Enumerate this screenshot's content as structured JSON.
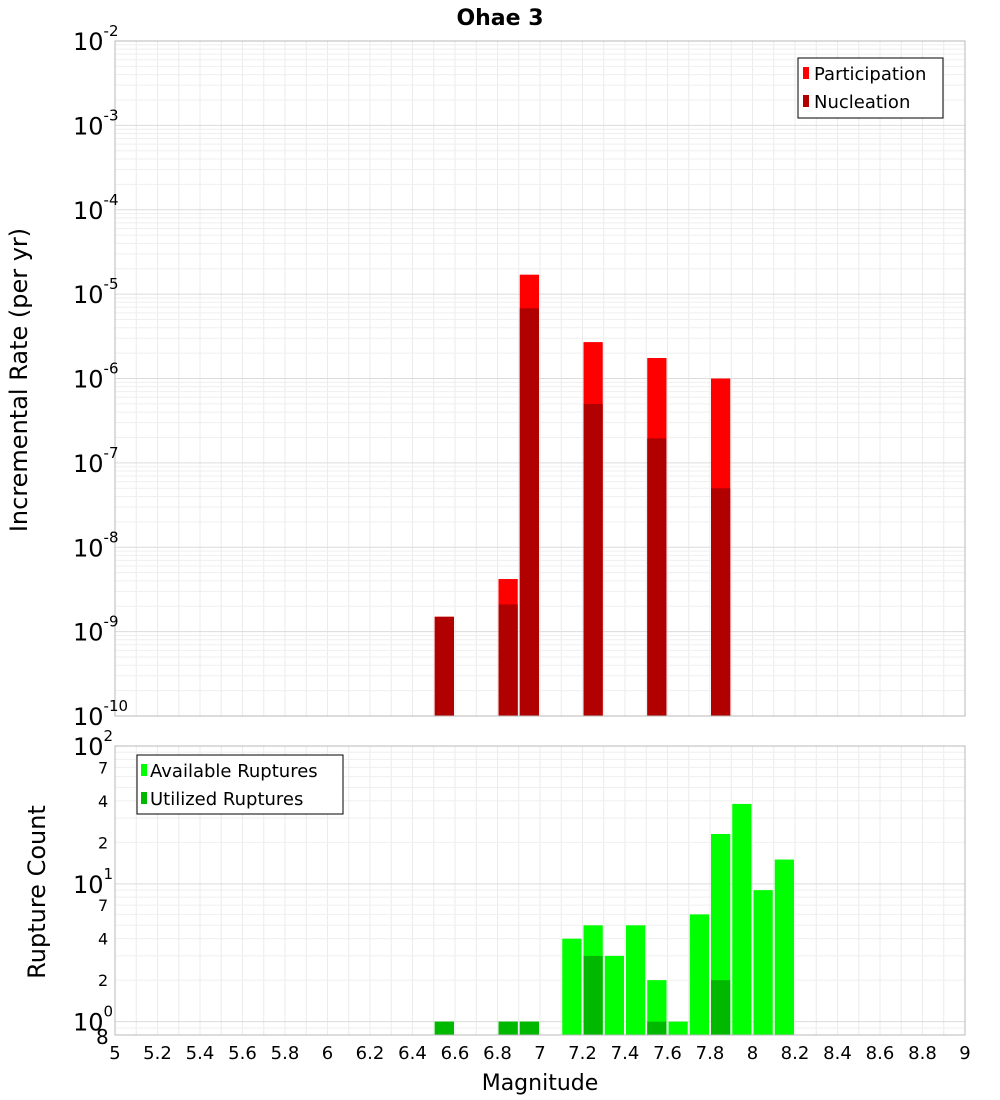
{
  "chart_data": [
    {
      "type": "bar",
      "title": "Ohae 3",
      "ylabel": "Incremental Rate (per yr)",
      "yscale": "log",
      "ylim": [
        1e-10,
        0.01
      ],
      "xlim": [
        5,
        9
      ],
      "y_tick_labels": [
        {
          "base": "10",
          "exp": "-10"
        },
        {
          "base": "10",
          "exp": "-9"
        },
        {
          "base": "10",
          "exp": "-8"
        },
        {
          "base": "10",
          "exp": "-7"
        },
        {
          "base": "10",
          "exp": "-6"
        },
        {
          "base": "10",
          "exp": "-5"
        },
        {
          "base": "10",
          "exp": "-4"
        },
        {
          "base": "10",
          "exp": "-3"
        },
        {
          "base": "10",
          "exp": "-2"
        }
      ],
      "legend_position": "top-right",
      "grid": true,
      "series": [
        {
          "name": "Participation",
          "color": "#ff0000",
          "x": [
            6.55,
            6.85,
            6.95,
            7.25,
            7.55,
            7.85
          ],
          "values": [
            1.5e-09,
            4.2e-09,
            1.7e-05,
            2.7e-06,
            1.75e-06,
            1e-06
          ]
        },
        {
          "name": "Nucleation",
          "color": "#b00000",
          "x": [
            6.55,
            6.85,
            6.95,
            7.25,
            7.55,
            7.85
          ],
          "values": [
            1.5e-09,
            2.1e-09,
            6.8e-06,
            5e-07,
            1.95e-07,
            5e-08
          ]
        }
      ]
    },
    {
      "type": "bar",
      "ylabel": "Rupture Count",
      "xlabel": "Magnitude",
      "yscale": "log",
      "ylim": [
        0.8,
        100
      ],
      "xlim": [
        5,
        9
      ],
      "x_ticks": [
        5,
        5.2,
        5.4,
        5.6,
        5.8,
        6,
        6.2,
        6.4,
        6.6,
        6.8,
        7,
        7.2,
        7.4,
        7.6,
        7.8,
        8,
        8.2,
        8.4,
        8.6,
        8.8,
        9
      ],
      "x_tick_labels": [
        "5",
        "5.2",
        "5.4",
        "5.6",
        "5.8",
        "6",
        "6.2",
        "6.4",
        "6.6",
        "6.8",
        "7",
        "7.2",
        "7.4",
        "7.6",
        "7.8",
        "8",
        "8.2",
        "8.4",
        "8.6",
        "8.8",
        "9"
      ],
      "y_major_ticks": [
        {
          "value": 1,
          "base": "10",
          "exp": "0"
        },
        {
          "value": 10,
          "base": "10",
          "exp": "1"
        },
        {
          "value": 100,
          "base": "10",
          "exp": "2"
        }
      ],
      "y_minor_ticks": [
        {
          "value": 0.8,
          "label": "8"
        },
        {
          "value": 2,
          "label": "2"
        },
        {
          "value": 4,
          "label": "4"
        },
        {
          "value": 7,
          "label": "7"
        },
        {
          "value": 20,
          "label": "2"
        },
        {
          "value": 40,
          "label": "4"
        },
        {
          "value": 70,
          "label": "7"
        }
      ],
      "legend_position": "top-left",
      "grid": true,
      "series": [
        {
          "name": "Available Ruptures",
          "color": "#00ff00",
          "x": [
            6.55,
            6.85,
            6.95,
            7.15,
            7.25,
            7.35,
            7.45,
            7.55,
            7.65,
            7.75,
            7.85,
            7.95,
            8.05,
            8.15
          ],
          "values": [
            1,
            1,
            1,
            4,
            5,
            3,
            5,
            2,
            1,
            6,
            23,
            38,
            9,
            15
          ]
        },
        {
          "name": "Utilized Ruptures",
          "color": "#00b800",
          "x": [
            6.55,
            6.85,
            6.95,
            7.25,
            7.55,
            7.85
          ],
          "values": [
            1,
            1,
            1,
            3,
            1,
            2
          ]
        }
      ]
    }
  ]
}
